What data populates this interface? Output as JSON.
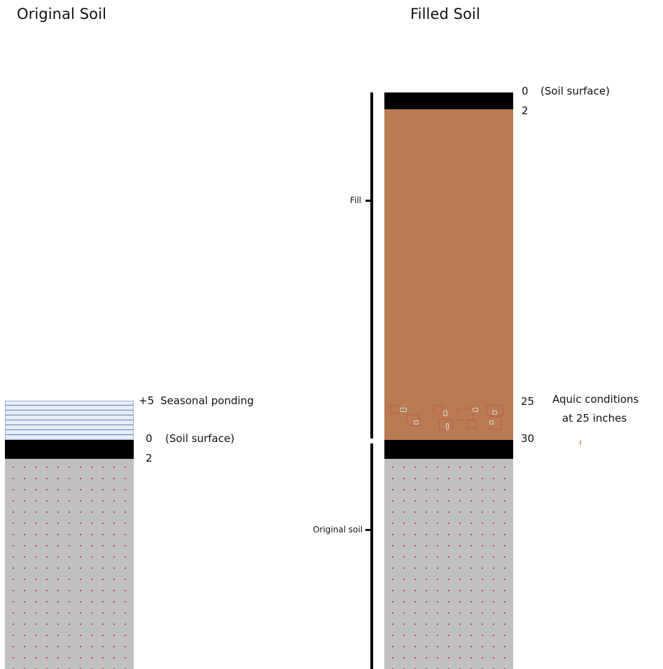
{
  "titles": {
    "left": "Original Soil",
    "right": "Filled Soil"
  },
  "left_column": {
    "labels": {
      "ponding_value": "+5",
      "ponding_text": "Seasonal ponding",
      "surface_value": "0",
      "surface_text": "(Soil surface)",
      "depth_2": "2"
    }
  },
  "right_column": {
    "labels": {
      "surface_value": "0",
      "surface_text": "(Soil surface)",
      "depth_2": "2",
      "depth_25": "25",
      "depth_30": "30",
      "aquic_line1": "Aquic conditions",
      "aquic_line2": "at 25 inches"
    }
  },
  "bracket_labels": {
    "fill": "Fill",
    "original_soil": "Original soil"
  }
}
